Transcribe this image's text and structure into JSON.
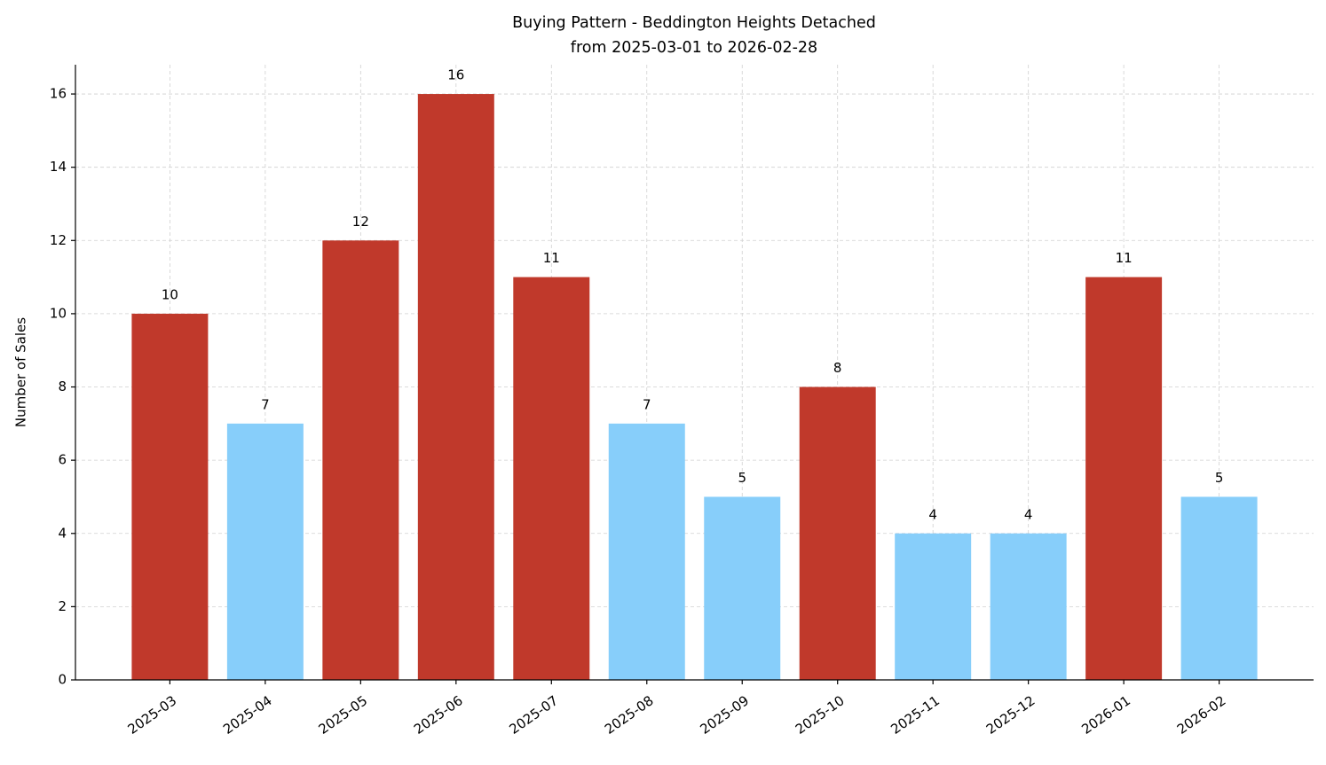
{
  "chart_data": {
    "type": "bar",
    "title": "Buying Pattern - Beddington Heights Detached",
    "subtitle": "from 2025-03-01 to 2026-02-28",
    "y_label": "Number of Sales",
    "categories": [
      "2025-03",
      "2025-04",
      "2025-05",
      "2025-06",
      "2025-07",
      "2025-08",
      "2025-09",
      "2025-10",
      "2025-11",
      "2025-12",
      "2026-01",
      "2026-02"
    ],
    "values": [
      10,
      7,
      12,
      16,
      11,
      7,
      5,
      8,
      4,
      4,
      11,
      5
    ],
    "colors": [
      "#c0392b",
      "#87cefa",
      "#c0392b",
      "#c0392b",
      "#c0392b",
      "#87cefa",
      "#87cefa",
      "#c0392b",
      "#87cefa",
      "#87cefa",
      "#c0392b",
      "#87cefa"
    ],
    "ylim": [
      0,
      16.8
    ],
    "yticks": [
      0,
      2,
      4,
      6,
      8,
      10,
      12,
      14,
      16
    ],
    "grid": true
  }
}
